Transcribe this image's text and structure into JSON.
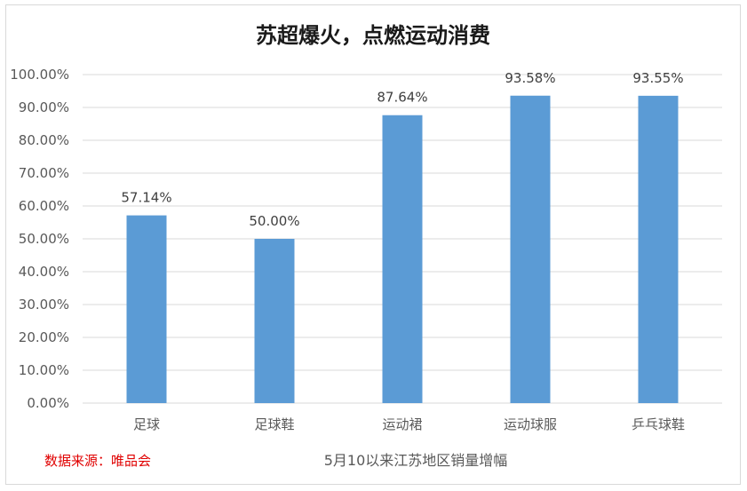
{
  "chart_data": {
    "type": "bar",
    "title": "苏超爆火，点燃运动消费",
    "categories": [
      "足球",
      "足球鞋",
      "运动裙",
      "运动球服",
      "乒乓球鞋"
    ],
    "values": [
      57.14,
      50.0,
      87.64,
      93.58,
      93.55
    ],
    "data_labels": [
      "57.14%",
      "50.00%",
      "87.64%",
      "93.58%",
      "93.55%"
    ],
    "y_ticks": [
      "0.00%",
      "10.00%",
      "20.00%",
      "30.00%",
      "40.00%",
      "50.00%",
      "60.00%",
      "70.00%",
      "80.00%",
      "90.00%",
      "100.00%"
    ],
    "ylim": [
      0,
      100
    ],
    "grid": true,
    "xlabel": "5月10以来江苏地区销量增幅",
    "ylabel": "",
    "bar_color": "#5b9bd5",
    "gridline_color": "#d9d9d9"
  },
  "source_note": "数据来源：唯品会"
}
